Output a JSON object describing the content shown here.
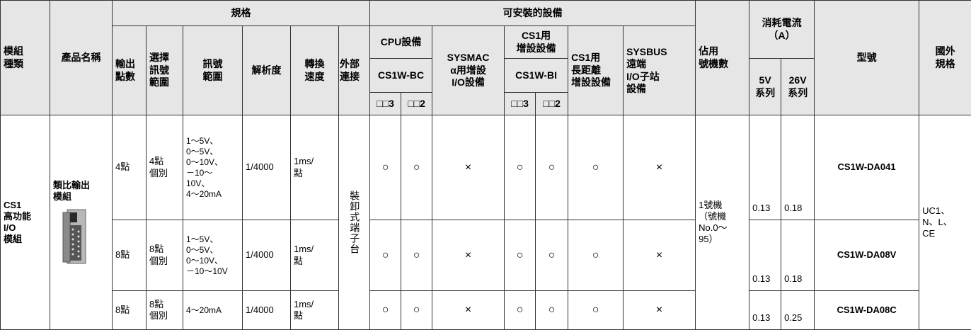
{
  "table": {
    "header": {
      "module_type": "模組\n種類",
      "product_name": "產品名稱",
      "spec": "規格",
      "points": "輸出\n點數",
      "select": "選擇\n訊號\n範圍",
      "signal_range": "訊號\n範圍",
      "resolution": "解析度",
      "speed": "轉換\n速度",
      "connection": "外部\n連接",
      "devices": "可安裝的設備",
      "cpu": "CPU設備",
      "cpu_model": "CS1W-BC",
      "cpu_3": "□□3",
      "cpu_2": "□□2",
      "sysmac": "SYSMAC\nα用增設\nI/O設備",
      "cs1": "CS1用\n增設設備",
      "cs1_model": "CS1W-BI",
      "cs1_3": "□□3",
      "cs1_2": "□□2",
      "long_distance": "CS1用\n長距離\n增設設備",
      "sysbus": "SYSBUS\n遠端\nI/O子站\n設備",
      "unit_number": "佔用\n號機數",
      "current": "消耗電流\n（A）",
      "current_5v": "5V\n系列",
      "current_26v": "26V\n系列",
      "model": "型號",
      "overseas": "國外\n規格"
    },
    "group": {
      "module_type": "CS1\n高功能\nI/O\n模組",
      "product_name": "類比輸出\n模組",
      "connection": "裝卸式端子台",
      "unit_number": "1號機\n（號機\nNo.0～\n95）",
      "overseas": "UC1、\nN、L、\nCE"
    },
    "rows": [
      [
        "4點",
        "4點\n個別",
        "1～5V、\n0～5V、\n0～10V、\n－10～\n10V、\n4～20mA",
        "1/4000",
        "1ms/\n點",
        "○",
        "○",
        "×",
        "○",
        "○",
        "○",
        "×",
        0.13,
        0.18,
        "CS1W-DA041"
      ],
      [
        "8點",
        "8點\n個別",
        "1～5V、\n0～5V、\n0～10V、\n－10～10V",
        "1/4000",
        "1ms/\n點",
        "○",
        "○",
        "×",
        "○",
        "○",
        "○",
        "×",
        0.13,
        0.18,
        "CS1W-DA08V"
      ],
      [
        "8點",
        "8點\n個別",
        "4～20mA",
        "1/4000",
        "1ms/\n點",
        "○",
        "○",
        "×",
        "○",
        "○",
        "○",
        "×",
        0.13,
        0.25,
        "CS1W-DA08C"
      ]
    ]
  }
}
